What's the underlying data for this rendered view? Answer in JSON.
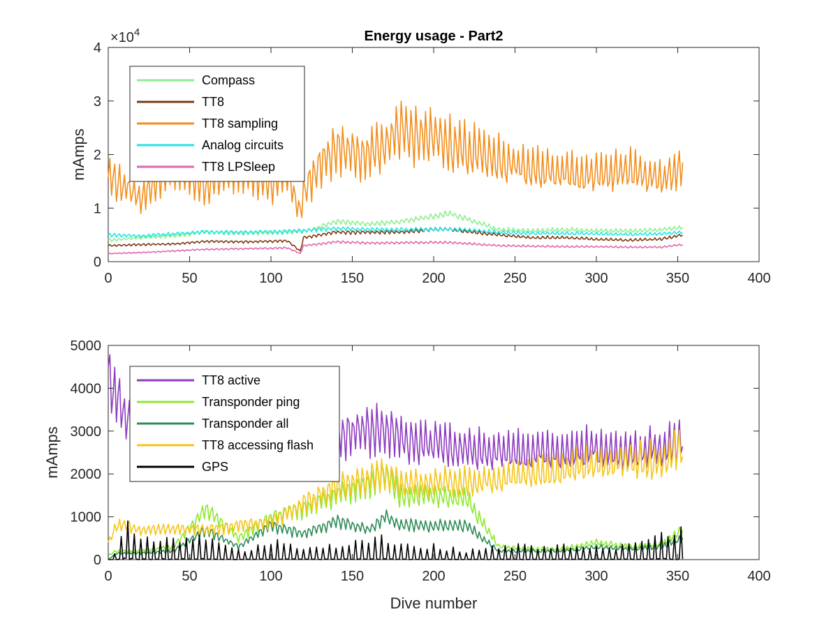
{
  "chart_data": [
    {
      "type": "line",
      "title": "Energy usage - Part2",
      "xlabel": "",
      "ylabel": "mAmps",
      "xlim": [
        0,
        400
      ],
      "ylim": [
        0,
        40000
      ],
      "y_exponent_label": "×10",
      "y_exponent_power": "4",
      "xticks": [
        "0",
        "50",
        "100",
        "150",
        "200",
        "250",
        "300",
        "350",
        "400"
      ],
      "yticks": [
        "0",
        "1",
        "2",
        "3",
        "4"
      ],
      "ytick_values": [
        0,
        10000,
        20000,
        30000,
        40000
      ],
      "legend_position": "top-left",
      "x": [
        0,
        20,
        40,
        60,
        80,
        100,
        110,
        118,
        120,
        130,
        140,
        160,
        180,
        200,
        210,
        240,
        260,
        280,
        300,
        320,
        340,
        353
      ],
      "series": [
        {
          "name": "Compass",
          "color": "#90ee90",
          "values": [
            4000,
            4500,
            4800,
            5500,
            5300,
            5400,
            5500,
            5600,
            5600,
            6500,
            7500,
            7000,
            7500,
            8500,
            9000,
            6000,
            5800,
            6000,
            5800,
            5700,
            6000,
            6500
          ]
        },
        {
          "name": "TT8",
          "color": "#7a3a10",
          "values": [
            3000,
            3200,
            3300,
            3800,
            3700,
            3800,
            3900,
            2000,
            4500,
            5000,
            5500,
            5500,
            5500,
            6000,
            6000,
            5000,
            4500,
            4500,
            4200,
            4000,
            4200,
            5000
          ]
        },
        {
          "name": "TT8 sampling",
          "color": "#f28e1c",
          "values": [
            16000,
            12000,
            18000,
            14000,
            18000,
            14000,
            17000,
            9000,
            13000,
            18000,
            21000,
            20000,
            24000,
            23000,
            22000,
            19000,
            17000,
            17000,
            16000,
            17000,
            15000,
            18000
          ]
        },
        {
          "name": "Analog circuits",
          "color": "#1fe6e6",
          "values": [
            5000,
            4800,
            5200,
            5600,
            5500,
            5600,
            5700,
            5800,
            5800,
            6000,
            6200,
            6000,
            6000,
            6000,
            6100,
            5500,
            5300,
            5300,
            5200,
            5100,
            5200,
            5500
          ]
        },
        {
          "name": "TT8 LPSleep",
          "color": "#e066ad",
          "values": [
            1500,
            1700,
            2000,
            2300,
            2400,
            2500,
            2600,
            1500,
            3000,
            3300,
            3700,
            3500,
            3500,
            3600,
            3600,
            3000,
            2900,
            2800,
            2800,
            2700,
            2700,
            3200
          ]
        }
      ]
    },
    {
      "type": "line",
      "title": "",
      "xlabel": "Dive number",
      "ylabel": "mAmps",
      "xlim": [
        0,
        400
      ],
      "ylim": [
        0,
        5000
      ],
      "xticks": [
        "0",
        "50",
        "100",
        "150",
        "200",
        "250",
        "300",
        "350",
        "400"
      ],
      "yticks": [
        "0",
        "1000",
        "2000",
        "3000",
        "4000",
        "5000"
      ],
      "ytick_values": [
        0,
        1000,
        2000,
        3000,
        4000,
        5000
      ],
      "legend_position": "top-left",
      "x": [
        0,
        5,
        10,
        20,
        40,
        60,
        80,
        100,
        120,
        140,
        160,
        170,
        180,
        200,
        220,
        240,
        260,
        280,
        300,
        320,
        340,
        353
      ],
      "series": [
        {
          "name": "TT8 active",
          "color": "#8e3bbf",
          "values": [
            4300,
            3800,
            3400,
            3000,
            2900,
            2800,
            2700,
            2700,
            2800,
            2900,
            3000,
            3100,
            2800,
            2700,
            2600,
            2500,
            2500,
            2500,
            2600,
            2500,
            2600,
            2800
          ]
        },
        {
          "name": "Transponder ping",
          "color": "#8ee82c",
          "values": [
            100,
            200,
            200,
            200,
            300,
            1200,
            500,
            1000,
            1200,
            1500,
            1800,
            2000,
            1500,
            1500,
            1400,
            300,
            250,
            250,
            400,
            300,
            350,
            700
          ]
        },
        {
          "name": "Transponder all",
          "color": "#2e8b57",
          "values": [
            0,
            150,
            150,
            150,
            200,
            700,
            300,
            800,
            600,
            900,
            700,
            1000,
            800,
            800,
            800,
            200,
            200,
            200,
            300,
            250,
            300,
            500
          ]
        },
        {
          "name": "TT8 accessing flash",
          "color": "#f5c518",
          "values": [
            400,
            800,
            800,
            700,
            700,
            700,
            800,
            900,
            1300,
            1700,
            1900,
            2000,
            1800,
            1800,
            1800,
            1900,
            2000,
            2100,
            2200,
            2300,
            2300,
            2600
          ]
        },
        {
          "name": "GPS",
          "color": "#000000",
          "values": [
            0,
            100,
            400,
            300,
            200,
            300,
            100,
            200,
            150,
            150,
            200,
            250,
            150,
            150,
            100,
            150,
            150,
            150,
            150,
            150,
            300,
            400
          ]
        }
      ]
    }
  ]
}
